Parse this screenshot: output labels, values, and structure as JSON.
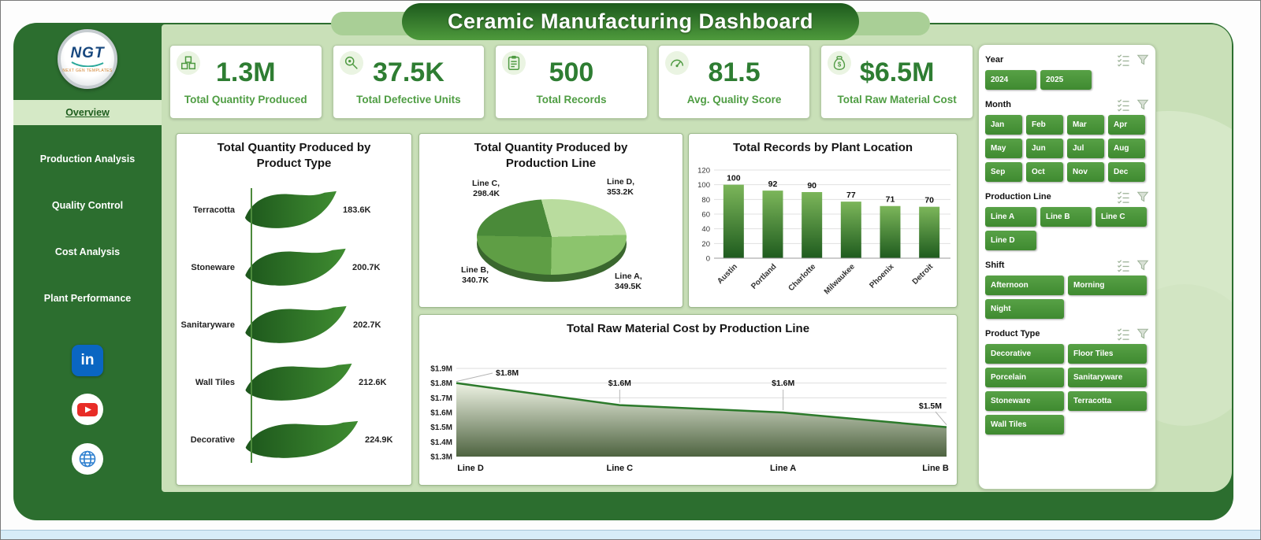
{
  "title": "Ceramic Manufacturing Dashboard",
  "colors": {
    "accent_dark_green": "#2e7d32",
    "sidebar_green": "#2c6e2f",
    "background_green": "#c9e0b8",
    "kpi_label_green": "#4f9d43",
    "slicer_button_green": "#4c9140"
  },
  "sidebar": {
    "logo_text": "NGT",
    "logo_caption": "NEXT GEN TEMPLATES",
    "items": [
      {
        "label": "Overview",
        "active": true
      },
      {
        "label": "Production Analysis",
        "active": false
      },
      {
        "label": "Quality Control",
        "active": false
      },
      {
        "label": "Cost Analysis",
        "active": false
      },
      {
        "label": "Plant Performance",
        "active": false
      }
    ],
    "social": [
      {
        "name": "linkedin-icon",
        "text": "in"
      },
      {
        "name": "youtube-icon",
        "text": ""
      },
      {
        "name": "globe-icon",
        "text": ""
      }
    ]
  },
  "kpis": [
    {
      "value": "1.3M",
      "label": "Total Quantity Produced",
      "icon": "production-icon"
    },
    {
      "value": "37.5K",
      "label": "Total Defective Units",
      "icon": "defective-icon"
    },
    {
      "value": "500",
      "label": "Total Records",
      "icon": "records-icon"
    },
    {
      "value": "81.5",
      "label": "Avg. Quality Score",
      "icon": "quality-icon"
    },
    {
      "value": "$6.5M",
      "label": "Total Raw Material Cost",
      "icon": "cost-icon"
    }
  ],
  "chart_data": [
    {
      "type": "bar",
      "orientation": "horizontal-ribbon",
      "title": "Total Quantity Produced by Product Type",
      "categories": [
        "Terracotta",
        "Stoneware",
        "Sanitaryware",
        "Wall Tiles",
        "Decorative"
      ],
      "values": [
        183600,
        200700,
        202700,
        212600,
        224900
      ],
      "value_labels": [
        "183.6K",
        "200.7K",
        "202.7K",
        "212.6K",
        "224.9K"
      ],
      "bar_color": "#2f7a28"
    },
    {
      "type": "pie",
      "title": "Total Quantity Produced by Production Line",
      "slices": [
        {
          "name": "Line D",
          "value": 353200,
          "label": "353.2K",
          "color": "#b9dc9e"
        },
        {
          "name": "Line A",
          "value": 349500,
          "label": "349.5K",
          "color": "#8cc46d"
        },
        {
          "name": "Line B",
          "value": 340700,
          "label": "340.7K",
          "color": "#5f9e45"
        },
        {
          "name": "Line C",
          "value": 298400,
          "label": "298.4K",
          "color": "#4a8a39"
        }
      ]
    },
    {
      "type": "bar",
      "title": "Total Records by Plant Location",
      "categories": [
        "Austin",
        "Portland",
        "Charlotte",
        "Milwaukee",
        "Phoenix",
        "Detroit"
      ],
      "values": [
        100,
        92,
        90,
        77,
        71,
        70
      ],
      "ylim": [
        0,
        120
      ],
      "yticks": [
        0,
        20,
        40,
        60,
        80,
        100,
        120
      ],
      "bar_color_top": "#7cb65a",
      "bar_color_bottom": "#1e5b1e"
    },
    {
      "type": "area",
      "title": "Total Raw Material Cost by Production Line",
      "categories": [
        "Line D",
        "Line C",
        "Line A",
        "Line B"
      ],
      "values_millions": [
        1.8,
        1.65,
        1.6,
        1.5
      ],
      "value_labels": [
        "$1.8M",
        "$1.6M",
        "$1.6M",
        "$1.5M"
      ],
      "ylim_millions": [
        1.3,
        1.9
      ],
      "yticks": [
        "$1.9M",
        "$1.8M",
        "$1.7M",
        "$1.6M",
        "$1.5M",
        "$1.4M",
        "$1.3M"
      ],
      "line_color": "#2c7a2b",
      "fill_top": "#eef3e4",
      "fill_bottom": "#4e6340"
    }
  ],
  "filters": {
    "sections": [
      {
        "label": "Year",
        "options": [
          "2024",
          "2025"
        ]
      },
      {
        "label": "Month",
        "options": [
          "Jan",
          "Feb",
          "Mar",
          "Apr",
          "May",
          "Jun",
          "Jul",
          "Aug",
          "Sep",
          "Oct",
          "Nov",
          "Dec"
        ]
      },
      {
        "label": "Production Line",
        "options": [
          "Line A",
          "Line B",
          "Line C",
          "Line D"
        ]
      },
      {
        "label": "Shift",
        "options": [
          "Afternoon",
          "Morning",
          "Night"
        ]
      },
      {
        "label": "Product Type",
        "options": [
          "Decorative",
          "Floor Tiles",
          "Porcelain",
          "Sanitaryware",
          "Stoneware",
          "Terracotta",
          "Wall Tiles"
        ]
      }
    ]
  }
}
